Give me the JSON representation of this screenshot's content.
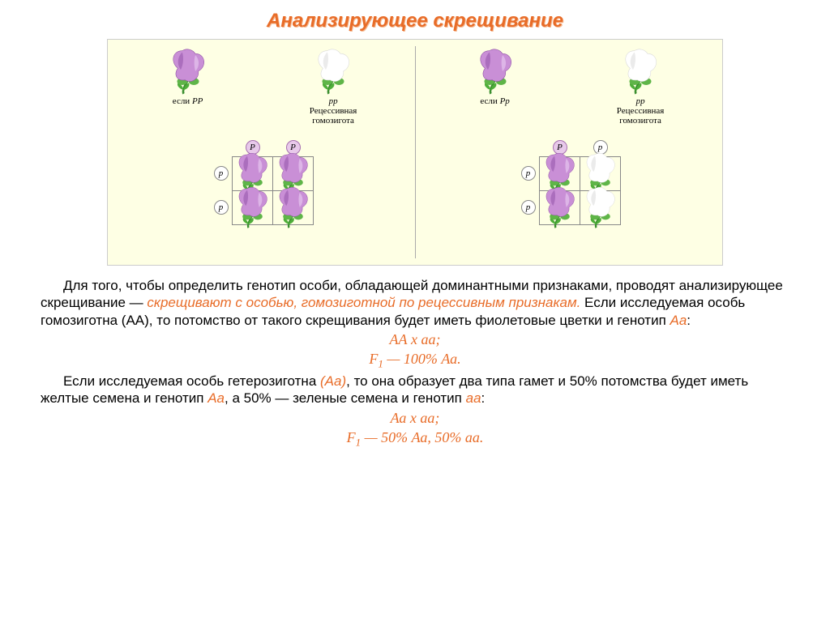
{
  "colors": {
    "title": "#e86c28",
    "title_shadow": "#f5b890",
    "diagram_bg": "#feffe4",
    "gamete_purple_fill": "#e8c9ea",
    "gamete_purple_stroke": "#a66fb0",
    "gamete_white_fill": "#ffffff",
    "gamete_white_stroke": "#888888",
    "highlight_orange": "#e86c28",
    "highlight_italic": "#e86c28"
  },
  "title": "Анализирующее скрещивание",
  "diagram": {
    "left": {
      "parent1": {
        "color": "purple",
        "label_prefix": "если ",
        "genotype": "PP",
        "sublabel": ""
      },
      "parent2": {
        "color": "white",
        "label_prefix": "",
        "genotype": "pp",
        "sublabel": "Рецессивная\nгомозигота"
      },
      "col_gametes": [
        "P",
        "P"
      ],
      "row_gametes": [
        "p",
        "p"
      ],
      "cells": [
        [
          "purple",
          "purple"
        ],
        [
          "purple",
          "purple"
        ]
      ]
    },
    "right": {
      "parent1": {
        "color": "purple",
        "label_prefix": "если ",
        "genotype": "Pp",
        "sublabel": ""
      },
      "parent2": {
        "color": "white",
        "label_prefix": "",
        "genotype": "pp",
        "sublabel": "Рецессивная\nгомозигота"
      },
      "col_gametes": [
        "P",
        "p"
      ],
      "row_gametes": [
        "p",
        "p"
      ],
      "cells": [
        [
          "purple",
          "white"
        ],
        [
          "purple",
          "white"
        ]
      ]
    }
  },
  "body": {
    "p1_a": "Для того, чтобы определить генотип особи, обладающей доминантными признаками, проводят анализирующее скрещивание — ",
    "p1_hl": "скрещивают с особью, гомозиготной по рецессивным признакам.",
    "p1_b": " Если исследуемая особь гомозиготна (АА), то потомство от такого скрещивания будет иметь фиолетовые цветки и генотип ",
    "p1_i": "Аа",
    "p1_c": ":",
    "eq1_a": "АА х аа;",
    "eq1_b_pre": "F",
    "eq1_b_sub": "1",
    "eq1_b_post": " — 100% Аа.",
    "p2_a": "Если исследуемая особь гетерозиготна ",
    "p2_i": "(Аа)",
    "p2_b": ", то она образует два типа гамет и 50% потомства будет иметь желтые семена и генотип ",
    "p2_i2": "Аа",
    "p2_c": ", а 50% — зеленые семена и генотип ",
    "p2_i3": "аа",
    "p2_d": ":",
    "eq2_a": "Аа х аа;",
    "eq2_b_pre": "F",
    "eq2_b_sub": "1",
    "eq2_b_post": " — 50% Аа, 50% аа."
  }
}
